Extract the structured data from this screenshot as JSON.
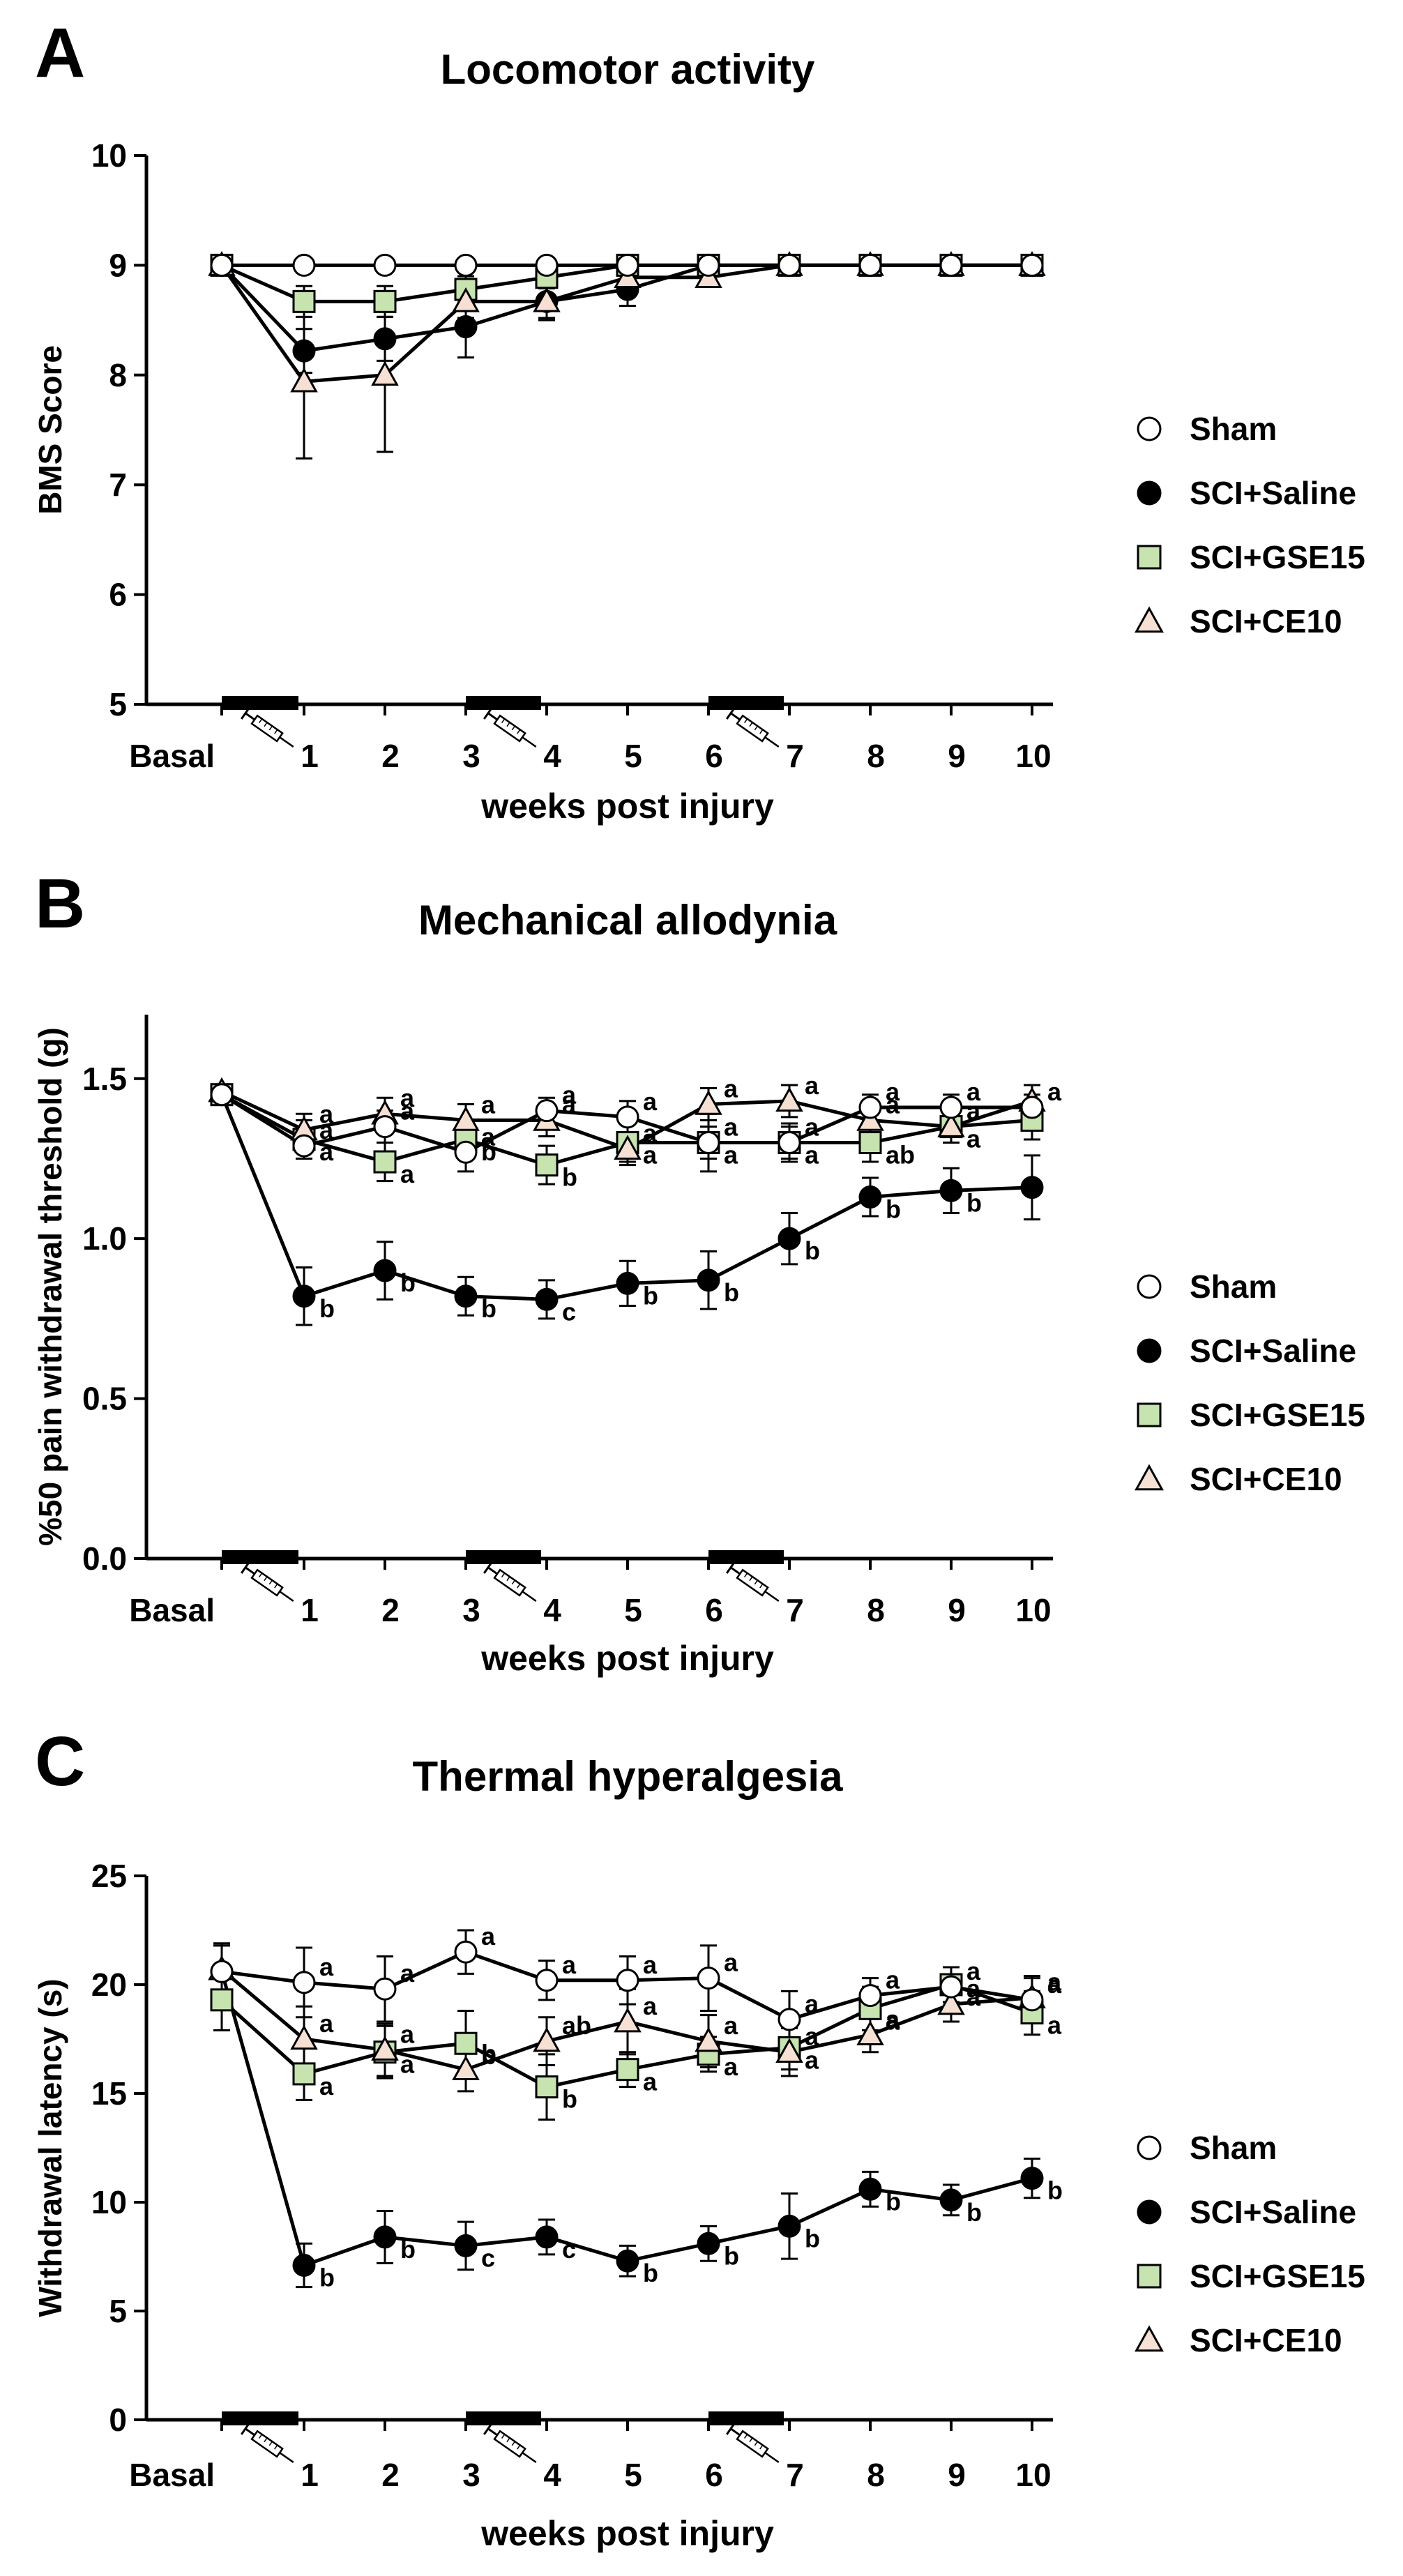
{
  "figure": {
    "x_categories": [
      "Basal",
      "1",
      "2",
      "3",
      "4",
      "5",
      "6",
      "7",
      "8",
      "9",
      "10"
    ],
    "x_label": "weeks post injury",
    "colors": {
      "sham": "#ffffff",
      "saline": "#000000",
      "gse15": "#c6e3b0",
      "ce10": "#f6e0d4",
      "axis": "#000000"
    },
    "series": [
      {
        "key": "sham",
        "name": "Sham",
        "marker": "circle"
      },
      {
        "key": "saline",
        "name": "SCI+Saline",
        "marker": "circle"
      },
      {
        "key": "gse15",
        "name": "SCI+GSE15",
        "marker": "square"
      },
      {
        "key": "ce10",
        "name": "SCI+CE10",
        "marker": "triangle"
      }
    ],
    "treatment_bars": [
      [
        0,
        1
      ],
      [
        3,
        4
      ],
      [
        6,
        7
      ]
    ],
    "syringe_icon": "syringe-icon"
  },
  "chart_data": [
    {
      "type": "line",
      "panel": "A",
      "title": "Locomotor activity",
      "ylabel": "BMS Score",
      "xlabel": "weeks post injury",
      "ylim": [
        5,
        10
      ],
      "yticks": [
        "5",
        "6",
        "7",
        "8",
        "9",
        "10"
      ],
      "series": [
        {
          "key": "sham",
          "name": "Sham",
          "values": [
            9,
            9,
            9,
            9,
            9,
            9,
            9,
            9,
            9,
            9,
            9
          ],
          "err": [
            0,
            0,
            0,
            0,
            0,
            0,
            0,
            0,
            0,
            0,
            0
          ],
          "ann": []
        },
        {
          "key": "saline",
          "name": "SCI+Saline",
          "values": [
            9,
            8.22,
            8.33,
            8.44,
            8.67,
            8.78,
            9,
            9,
            9,
            9,
            9
          ],
          "err": [
            0,
            0.2,
            0.2,
            0.28,
            0.17,
            0.15,
            0,
            0,
            0,
            0,
            0
          ],
          "ann": []
        },
        {
          "key": "gse15",
          "name": "SCI+GSE15",
          "values": [
            9,
            8.67,
            8.67,
            8.78,
            8.89,
            9,
            9,
            9,
            9,
            9,
            9
          ],
          "err": [
            0,
            0.14,
            0.14,
            0.12,
            0.1,
            0,
            0,
            0,
            0,
            0,
            0
          ],
          "ann": []
        },
        {
          "key": "ce10",
          "name": "SCI+CE10",
          "values": [
            9,
            7.94,
            8,
            8.67,
            8.67,
            8.89,
            8.89,
            9,
            9,
            9,
            9
          ],
          "err": [
            0,
            0.7,
            0.7,
            0.15,
            0.15,
            0.1,
            0,
            0,
            0,
            0,
            0
          ],
          "ann": []
        }
      ]
    },
    {
      "type": "line",
      "panel": "B",
      "title": "Mechanical allodynia",
      "ylabel": "%50 pain withdrawal threshold (g)",
      "xlabel": "weeks post injury",
      "ylim": [
        0,
        1.7
      ],
      "yticks": [
        "0.0",
        "0.5",
        "1.0",
        "1.5"
      ],
      "series": [
        {
          "key": "sham",
          "name": "Sham",
          "values": [
            1.45,
            1.29,
            1.35,
            1.27,
            1.4,
            1.38,
            1.3,
            1.3,
            1.41,
            1.41,
            1.41
          ],
          "err": [
            0.03,
            0.04,
            0.05,
            0.06,
            0.04,
            0.05,
            0.05,
            0.05,
            0.04,
            0.04,
            0.04
          ],
          "ann": [
            "",
            "a",
            "a",
            "a",
            "a",
            "a",
            "a",
            "a",
            "a",
            "a",
            "a"
          ]
        },
        {
          "key": "saline",
          "name": "SCI+Saline",
          "values": [
            1.45,
            0.82,
            0.9,
            0.82,
            0.81,
            0.86,
            0.87,
            1,
            1.13,
            1.15,
            1.16
          ],
          "err": [
            0.03,
            0.09,
            0.09,
            0.06,
            0.06,
            0.07,
            0.09,
            0.08,
            0.06,
            0.07,
            0.1
          ],
          "ann": [
            "",
            "b",
            "b",
            "b",
            "c",
            "b",
            "b",
            "b",
            "b",
            "b",
            ""
          ]
        },
        {
          "key": "gse15",
          "name": "SCI+GSE15",
          "values": [
            1.45,
            1.31,
            1.24,
            1.31,
            1.23,
            1.3,
            1.3,
            1.3,
            1.3,
            1.35,
            1.37
          ],
          "err": [
            0.03,
            0.06,
            0.06,
            0.06,
            0.06,
            0.06,
            0.09,
            0.06,
            0.06,
            0.05,
            0.06
          ],
          "ann": [
            "",
            "a",
            "a",
            "b",
            "b",
            "a",
            "a",
            "a",
            "ab",
            "a",
            ""
          ]
        },
        {
          "key": "ce10",
          "name": "SCI+CE10",
          "values": [
            1.46,
            1.34,
            1.39,
            1.37,
            1.37,
            1.28,
            1.42,
            1.43,
            1.37,
            1.35,
            1.43
          ],
          "err": [
            0.02,
            0.05,
            0.05,
            0.05,
            0.05,
            0.05,
            0.05,
            0.05,
            0.05,
            0.05,
            0.05
          ],
          "ann": [
            "",
            "a",
            "a",
            "a",
            "a",
            "a",
            "a",
            "a",
            "a",
            "a",
            ""
          ]
        }
      ]
    },
    {
      "type": "line",
      "panel": "C",
      "title": "Thermal hyperalgesia",
      "ylabel": "Withdrawal latency (s)",
      "xlabel": "weeks post injury",
      "ylim": [
        0,
        25
      ],
      "yticks": [
        "0",
        "5",
        "10",
        "15",
        "20",
        "25"
      ],
      "series": [
        {
          "key": "sham",
          "name": "Sham",
          "values": [
            20.6,
            20.1,
            19.8,
            21.5,
            20.2,
            20.2,
            20.3,
            18.4,
            19.5,
            19.9,
            19.3
          ],
          "err": [
            1.2,
            1.6,
            1.5,
            1,
            0.9,
            1.1,
            1.5,
            1.3,
            0.8,
            0.9,
            1
          ],
          "ann": [
            "",
            "a",
            "a",
            "a",
            "a",
            "a",
            "a",
            "a",
            "a",
            "a",
            "a"
          ]
        },
        {
          "key": "saline",
          "name": "SCI+Saline",
          "values": [
            20.6,
            7.1,
            8.4,
            8,
            8.4,
            7.3,
            8.1,
            8.9,
            10.6,
            10.1,
            11.1
          ],
          "err": [
            1.2,
            1,
            1.2,
            1.1,
            0.8,
            0.7,
            0.8,
            1.5,
            0.8,
            0.7,
            0.9
          ],
          "ann": [
            "",
            "b",
            "b",
            "c",
            "c",
            "b",
            "b",
            "b",
            "b",
            "b",
            "b"
          ]
        },
        {
          "key": "gse15",
          "name": "SCI+GSE15",
          "values": [
            19.3,
            15.9,
            16.9,
            17.3,
            15.3,
            16.1,
            16.8,
            17.1,
            18.9,
            20,
            18.7
          ],
          "err": [
            1.4,
            1.2,
            1.2,
            1.5,
            1.5,
            0.8,
            0.8,
            1,
            1,
            0.8,
            1
          ],
          "ann": [
            "",
            "a",
            "a",
            "b",
            "b",
            "a",
            "a",
            "a",
            "a",
            "a",
            "a"
          ]
        },
        {
          "key": "ce10",
          "name": "SCI+CE10",
          "values": [
            20.7,
            17.5,
            17,
            16.1,
            17.4,
            18.3,
            17.4,
            16.9,
            17.7,
            19.1,
            19.4
          ],
          "err": [
            1.2,
            1.5,
            1.2,
            1,
            1.1,
            1.5,
            1.2,
            1.1,
            0.8,
            0.8,
            1
          ],
          "ann": [
            "",
            "a",
            "a",
            "b",
            "ab",
            "a",
            "a",
            "a",
            "a",
            "a",
            "a"
          ]
        }
      ]
    }
  ]
}
